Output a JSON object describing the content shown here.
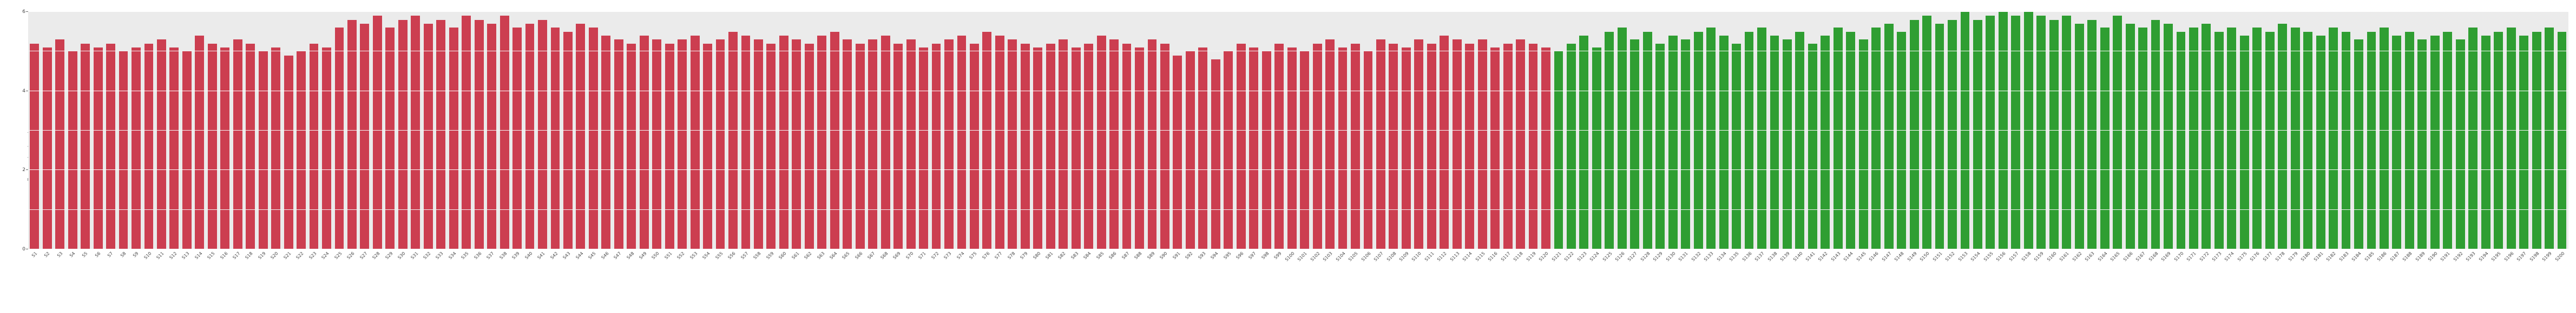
{
  "chart_data": {
    "type": "bar",
    "title": "",
    "xlabel": "",
    "ylabel": "Expression Level",
    "ylim": [
      0,
      6
    ],
    "yticks": [
      0,
      2,
      4,
      6
    ],
    "grid": true,
    "legend": "none",
    "panel_background": "#ebebeb",
    "group_colors": {
      "group1": "#cc3e50",
      "group2": "#2f9e32"
    },
    "group_split_index": 120,
    "categories": [
      "S1",
      "S2",
      "S3",
      "S4",
      "S5",
      "S6",
      "S7",
      "S8",
      "S9",
      "S10",
      "S11",
      "S12",
      "S13",
      "S14",
      "S15",
      "S16",
      "S17",
      "S18",
      "S19",
      "S20",
      "S21",
      "S22",
      "S23",
      "S24",
      "S25",
      "S26",
      "S27",
      "S28",
      "S29",
      "S30",
      "S31",
      "S32",
      "S33",
      "S34",
      "S35",
      "S36",
      "S37",
      "S38",
      "S39",
      "S40",
      "S41",
      "S42",
      "S43",
      "S44",
      "S45",
      "S46",
      "S47",
      "S48",
      "S49",
      "S50",
      "S51",
      "S52",
      "S53",
      "S54",
      "S55",
      "S56",
      "S57",
      "S58",
      "S59",
      "S60",
      "S61",
      "S62",
      "S63",
      "S64",
      "S65",
      "S66",
      "S67",
      "S68",
      "S69",
      "S70",
      "S71",
      "S72",
      "S73",
      "S74",
      "S75",
      "S76",
      "S77",
      "S78",
      "S79",
      "S80",
      "S81",
      "S82",
      "S83",
      "S84",
      "S85",
      "S86",
      "S87",
      "S88",
      "S89",
      "S90",
      "S91",
      "S92",
      "S93",
      "S94",
      "S95",
      "S96",
      "S97",
      "S98",
      "S99",
      "S100",
      "S101",
      "S102",
      "S103",
      "S104",
      "S105",
      "S106",
      "S107",
      "S108",
      "S109",
      "S110",
      "S111",
      "S112",
      "S113",
      "S114",
      "S115",
      "S116",
      "S117",
      "S118",
      "S119",
      "S120",
      "S121",
      "S122",
      "S123",
      "S124",
      "S125",
      "S126",
      "S127",
      "S128",
      "S129",
      "S130",
      "S131",
      "S132",
      "S133",
      "S134",
      "S135",
      "S136",
      "S137",
      "S138",
      "S139",
      "S140",
      "S141",
      "S142",
      "S143",
      "S144",
      "S145",
      "S146",
      "S147",
      "S148",
      "S149",
      "S150",
      "S151",
      "S152",
      "S153",
      "S154",
      "S155",
      "S156",
      "S157",
      "S158",
      "S159",
      "S160",
      "S161",
      "S162",
      "S163",
      "S164",
      "S165",
      "S166",
      "S167",
      "S168",
      "S169",
      "S170",
      "S171",
      "S172",
      "S173",
      "S174",
      "S175",
      "S176",
      "S177",
      "S178",
      "S179",
      "S180",
      "S181",
      "S182",
      "S183",
      "S184",
      "S185",
      "S186",
      "S187",
      "S188",
      "S189",
      "S190",
      "S191",
      "S192",
      "S193",
      "S194",
      "S195",
      "S196",
      "S197",
      "S198",
      "S199",
      "S200"
    ],
    "values": [
      5.2,
      5.1,
      5.3,
      5.0,
      5.2,
      5.1,
      5.2,
      5.0,
      5.1,
      5.2,
      5.3,
      5.1,
      5.0,
      5.4,
      5.2,
      5.1,
      5.3,
      5.2,
      5.0,
      5.1,
      4.9,
      5.0,
      5.2,
      5.1,
      5.6,
      5.8,
      5.7,
      5.9,
      5.6,
      5.8,
      5.9,
      5.7,
      5.8,
      5.6,
      5.9,
      5.8,
      5.7,
      5.9,
      5.6,
      5.7,
      5.8,
      5.6,
      5.5,
      5.7,
      5.6,
      5.4,
      5.3,
      5.2,
      5.4,
      5.3,
      5.2,
      5.3,
      5.4,
      5.2,
      5.3,
      5.5,
      5.4,
      5.3,
      5.2,
      5.4,
      5.3,
      5.2,
      5.4,
      5.5,
      5.3,
      5.2,
      5.3,
      5.4,
      5.2,
      5.3,
      5.1,
      5.2,
      5.3,
      5.4,
      5.2,
      5.5,
      5.4,
      5.3,
      5.2,
      5.1,
      5.2,
      5.3,
      5.1,
      5.2,
      5.4,
      5.3,
      5.2,
      5.1,
      5.3,
      5.2,
      4.9,
      5.0,
      5.1,
      4.8,
      5.0,
      5.2,
      5.1,
      5.0,
      5.2,
      5.1,
      5.0,
      5.2,
      5.3,
      5.1,
      5.2,
      5.0,
      5.3,
      5.2,
      5.1,
      5.3,
      5.2,
      5.4,
      5.3,
      5.2,
      5.3,
      5.1,
      5.2,
      5.3,
      5.2,
      5.1,
      5.0,
      5.2,
      5.4,
      5.1,
      5.5,
      5.6,
      5.3,
      5.5,
      5.2,
      5.4,
      5.3,
      5.5,
      5.6,
      5.4,
      5.2,
      5.5,
      5.6,
      5.4,
      5.3,
      5.5,
      5.2,
      5.4,
      5.6,
      5.5,
      5.3,
      5.6,
      5.7,
      5.5,
      5.8,
      5.9,
      5.7,
      5.8,
      6.0,
      5.8,
      5.9,
      6.0,
      5.9,
      6.0,
      5.9,
      5.8,
      5.9,
      5.7,
      5.8,
      5.6,
      5.9,
      5.7,
      5.6,
      5.8,
      5.7,
      5.5,
      5.6,
      5.7,
      5.5,
      5.6,
      5.4,
      5.6,
      5.5,
      5.7,
      5.6,
      5.5,
      5.4,
      5.6,
      5.5,
      5.3,
      5.5,
      5.6,
      5.4,
      5.5,
      5.3,
      5.4,
      5.5,
      5.3,
      5.6,
      5.4,
      5.5,
      5.6,
      5.4,
      5.5,
      5.6,
      5.5
    ]
  }
}
